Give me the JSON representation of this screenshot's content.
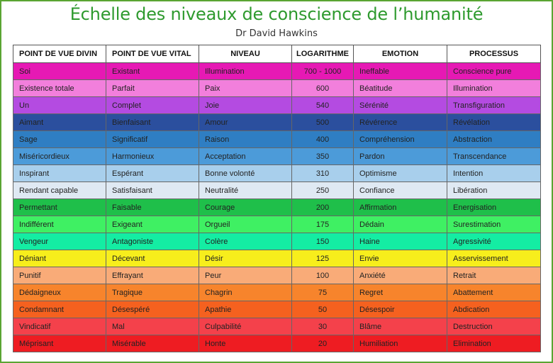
{
  "title": "Échelle des niveaux de conscience de l’humanité",
  "subtitle": "Dr David Hawkins",
  "columns": [
    "POINT DE VUE DIVIN",
    "POINT DE VUE VITAL",
    "NIVEAU",
    "LOGARITHME",
    "EMOTION",
    "PROCESSUS"
  ],
  "rows": [
    {
      "divin": "Soi",
      "vital": "Existant",
      "niveau": "Illumination",
      "log": "700 - 1000",
      "emotion": "Ineffable",
      "processus": "Conscience pure",
      "color": "#e619b4"
    },
    {
      "divin": "Existence totale",
      "vital": "Parfait",
      "niveau": "Paix",
      "log": "600",
      "emotion": "Béatitude",
      "processus": "Illumination",
      "color": "#f27fdc"
    },
    {
      "divin": "Un",
      "vital": "Complet",
      "niveau": "Joie",
      "log": "540",
      "emotion": "Sérénité",
      "processus": "Transfiguration",
      "color": "#b44be1"
    },
    {
      "divin": "Aimant",
      "vital": "Bienfaisant",
      "niveau": "Amour",
      "log": "500",
      "emotion": "Révérence",
      "processus": "Révélation",
      "color": "#2b4f9e"
    },
    {
      "divin": "Sage",
      "vital": "Significatif",
      "niveau": "Raison",
      "log": "400",
      "emotion": "Compréhension",
      "processus": "Abstraction",
      "color": "#2f7ec3"
    },
    {
      "divin": "Miséricordieux",
      "vital": "Harmonieux",
      "niveau": "Acceptation",
      "log": "350",
      "emotion": "Pardon",
      "processus": "Transcendance",
      "color": "#4c9bd9"
    },
    {
      "divin": "Inspirant",
      "vital": "Espérant",
      "niveau": "Bonne volonté",
      "log": "310",
      "emotion": "Optimisme",
      "processus": "Intention",
      "color": "#a8cfec"
    },
    {
      "divin": "Rendant capable",
      "vital": "Satisfaisant",
      "niveau": "Neutralité",
      "log": "250",
      "emotion": "Confiance",
      "processus": "Libération",
      "color": "#dfe9f3"
    },
    {
      "divin": "Permettant",
      "vital": "Faisable",
      "niveau": "Courage",
      "log": "200",
      "emotion": "Affirmation",
      "processus": "Energisation",
      "color": "#1fbf4a"
    },
    {
      "divin": "Indifférent",
      "vital": "Exigeant",
      "niveau": "Orgueil",
      "log": "175",
      "emotion": "Dédain",
      "processus": "Surestimation",
      "color": "#3ff063"
    },
    {
      "divin": "Vengeur",
      "vital": "Antagoniste",
      "niveau": "Colère",
      "log": "150",
      "emotion": "Haine",
      "processus": "Agressivité",
      "color": "#14eda3"
    },
    {
      "divin": "Déniant",
      "vital": "Décevant",
      "niveau": "Désir",
      "log": "125",
      "emotion": "Envie",
      "processus": "Asservissement",
      "color": "#f7ee1c"
    },
    {
      "divin": "Punitif",
      "vital": "Effrayant",
      "niveau": "Peur",
      "log": "100",
      "emotion": "Anxiété",
      "processus": "Retrait",
      "color": "#f9ab78"
    },
    {
      "divin": "Dédaigneux",
      "vital": "Tragique",
      "niveau": "Chagrin",
      "log": "75",
      "emotion": "Regret",
      "processus": "Abattement",
      "color": "#f7842c"
    },
    {
      "divin": "Condamnant",
      "vital": "Désespéré",
      "niveau": "Apathie",
      "log": "50",
      "emotion": "Désespoir",
      "processus": "Abdication",
      "color": "#f5611f"
    },
    {
      "divin": "Vindicatif",
      "vital": "Mal",
      "niveau": "Culpabilité",
      "log": "30",
      "emotion": "Blâme",
      "processus": "Destruction",
      "color": "#f4414b"
    },
    {
      "divin": "Méprisant",
      "vital": "Misérable",
      "niveau": "Honte",
      "log": "20",
      "emotion": "Humiliation",
      "processus": "Elimination",
      "color": "#ee1c22"
    }
  ]
}
